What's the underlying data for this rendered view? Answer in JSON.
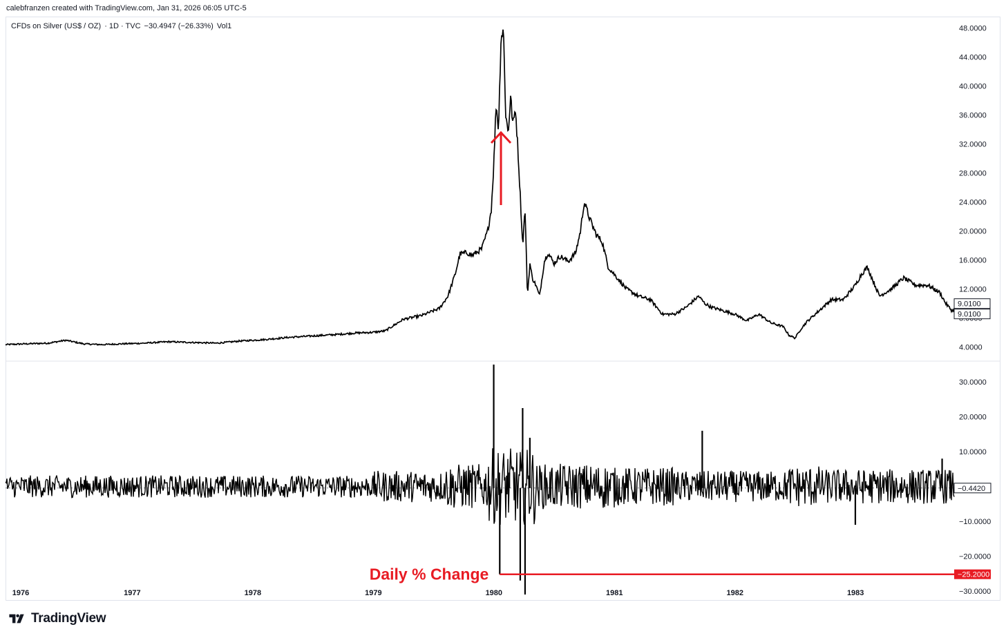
{
  "header": {
    "text": "calebfranzen created with TradingView.com, Jan 31, 2026 06:05 UTC-5"
  },
  "legend": {
    "symbol": "CFDs on Silver (US$ / OZ)",
    "interval": "· 1D · TVC",
    "change": "−30.4947 (−26.33%)",
    "study": "Vol1"
  },
  "brand": {
    "name": "TradingView"
  },
  "colors": {
    "line": "#000000",
    "accent": "#e81b23",
    "axis_text": "#131722",
    "border": "#e0e3eb"
  },
  "chart_data": [
    {
      "type": "line",
      "title": "CFDs on Silver (US$ / OZ)",
      "xlabel": "",
      "ylabel": "",
      "xlim": [
        1975.95,
        1983.82
      ],
      "ylim": [
        2.5,
        49
      ],
      "y_ticks": [
        "4.0000",
        "8.0000",
        "12.0000",
        "16.0000",
        "20.0000",
        "24.0000",
        "28.0000",
        "32.0000",
        "36.0000",
        "40.0000",
        "44.0000",
        "48.0000"
      ],
      "y_tick_values": [
        4,
        8,
        12,
        16,
        20,
        24,
        28,
        32,
        36,
        40,
        44,
        48
      ],
      "x_ticks": [
        "1976",
        "1977",
        "1978",
        "1979",
        "1980",
        "1981",
        "1982",
        "1983"
      ],
      "x_tick_values": [
        1976,
        1977,
        1978,
        1979,
        1980,
        1981,
        1982,
        1983
      ],
      "price_labels": [
        "9.0100",
        "9.0100"
      ],
      "series": [
        {
          "x": [
            1975.95,
            1976.1,
            1976.3,
            1976.45,
            1976.6,
            1976.75,
            1976.9,
            1977.1,
            1977.3,
            1977.5,
            1977.7,
            1977.9,
            1978.1,
            1978.3,
            1978.5,
            1978.7,
            1978.85,
            1979.0,
            1979.1,
            1979.25,
            1979.4,
            1979.55,
            1979.62,
            1979.68,
            1979.72,
            1979.78,
            1979.82,
            1979.9,
            1979.95,
            1979.98,
            1980.0,
            1980.02,
            1980.04,
            1980.06,
            1980.08,
            1980.1,
            1980.12,
            1980.14,
            1980.16,
            1980.18,
            1980.2,
            1980.22,
            1980.24,
            1980.26,
            1980.28,
            1980.3,
            1980.32,
            1980.35,
            1980.38,
            1980.42,
            1980.45,
            1980.5,
            1980.55,
            1980.62,
            1980.68,
            1980.72,
            1980.75,
            1980.8,
            1980.85,
            1980.9,
            1980.95,
            1981.0,
            1981.1,
            1981.2,
            1981.3,
            1981.4,
            1981.5,
            1981.6,
            1981.7,
            1981.75,
            1981.8,
            1981.9,
            1982.0,
            1982.1,
            1982.2,
            1982.3,
            1982.4,
            1982.45,
            1982.5,
            1982.55,
            1982.6,
            1982.7,
            1982.8,
            1982.9,
            1983.0,
            1983.05,
            1983.1,
            1983.15,
            1983.2,
            1983.3,
            1983.4,
            1983.5,
            1983.6,
            1983.7,
            1983.75,
            1983.8,
            1983.82
          ],
          "values": [
            4.3,
            4.4,
            4.5,
            4.9,
            4.4,
            4.3,
            4.4,
            4.5,
            4.7,
            4.6,
            4.5,
            4.8,
            5.0,
            5.3,
            5.5,
            5.7,
            5.9,
            6.0,
            6.2,
            7.8,
            8.3,
            9.3,
            11.0,
            14.0,
            16.8,
            17.0,
            16.6,
            17.5,
            20.0,
            23.0,
            29.0,
            37.5,
            34.0,
            46.5,
            48.0,
            36.0,
            33.5,
            38.5,
            34.5,
            37.0,
            31.5,
            25.0,
            18.0,
            23.0,
            11.0,
            15.5,
            13.5,
            12.5,
            11.0,
            15.8,
            17.0,
            15.5,
            16.5,
            15.8,
            17.0,
            20.0,
            24.0,
            21.5,
            19.5,
            18.5,
            15.0,
            14.0,
            12.0,
            11.0,
            10.5,
            8.5,
            8.5,
            9.5,
            11.0,
            10.0,
            9.5,
            9.0,
            8.5,
            7.6,
            8.5,
            7.3,
            6.8,
            5.6,
            5.2,
            6.5,
            7.5,
            9.0,
            10.5,
            10.5,
            12.5,
            14.0,
            15.0,
            13.0,
            11.0,
            12.0,
            13.5,
            12.5,
            12.5,
            11.5,
            10.0,
            9.0,
            9.01
          ]
        }
      ]
    },
    {
      "type": "line",
      "title": "Daily % Change",
      "xlabel": "",
      "ylabel": "",
      "xlim": [
        1975.95,
        1983.82
      ],
      "ylim": [
        -32,
        35
      ],
      "y_ticks": [
        "−30.0000",
        "−20.0000",
        "−10.0000",
        "10.0000",
        "20.0000",
        "30.0000"
      ],
      "y_tick_values": [
        -30,
        -20,
        -10,
        10,
        20,
        30
      ],
      "last_value_label": "−0.4420",
      "last_value": -0.442,
      "annotation": {
        "label": "Daily % Change",
        "value_label": "−25.2000",
        "value": -25.2,
        "x": 1980.05
      },
      "series": [
        {
          "x": [
            1980.0,
            1980.05,
            1980.13,
            1980.22,
            1980.24,
            1980.26,
            1980.3,
            1981.73,
            1983.0,
            1983.72
          ],
          "values": [
            35.0,
            -25.2,
            4.0,
            -27.0,
            22.5,
            -31.0,
            14.0,
            16.0,
            -11.0,
            8.0
          ]
        }
      ]
    }
  ]
}
